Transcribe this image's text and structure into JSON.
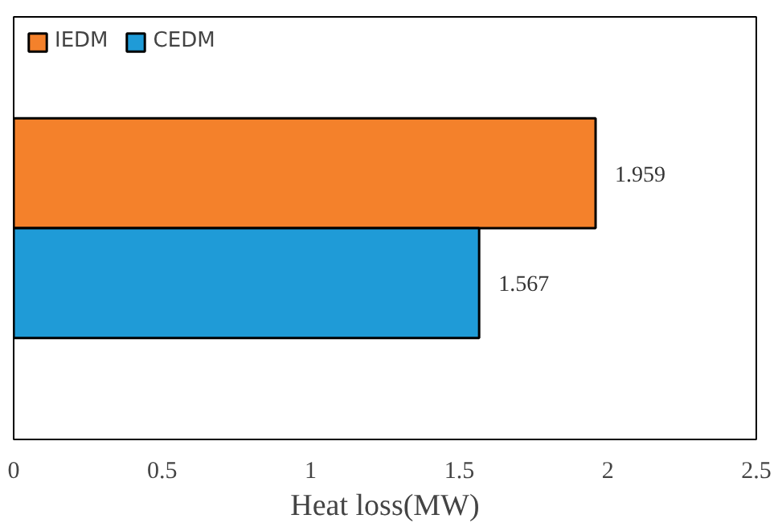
{
  "chart_data": {
    "type": "bar",
    "orientation": "horizontal",
    "categories": [
      null
    ],
    "series": [
      {
        "name": "IEDM",
        "color": "#f4812b",
        "values": [
          1.959
        ]
      },
      {
        "name": "CEDM",
        "color": "#1f9bd7",
        "values": [
          1.567
        ]
      }
    ],
    "xlabel": "Heat loss(MW)",
    "xlim": [
      0,
      2.5
    ],
    "xticks": [
      0,
      0.5,
      1,
      1.5,
      2,
      2.5
    ],
    "data_labels": true,
    "legend": "top left",
    "grid": false,
    "tick_labels": "x"
  }
}
